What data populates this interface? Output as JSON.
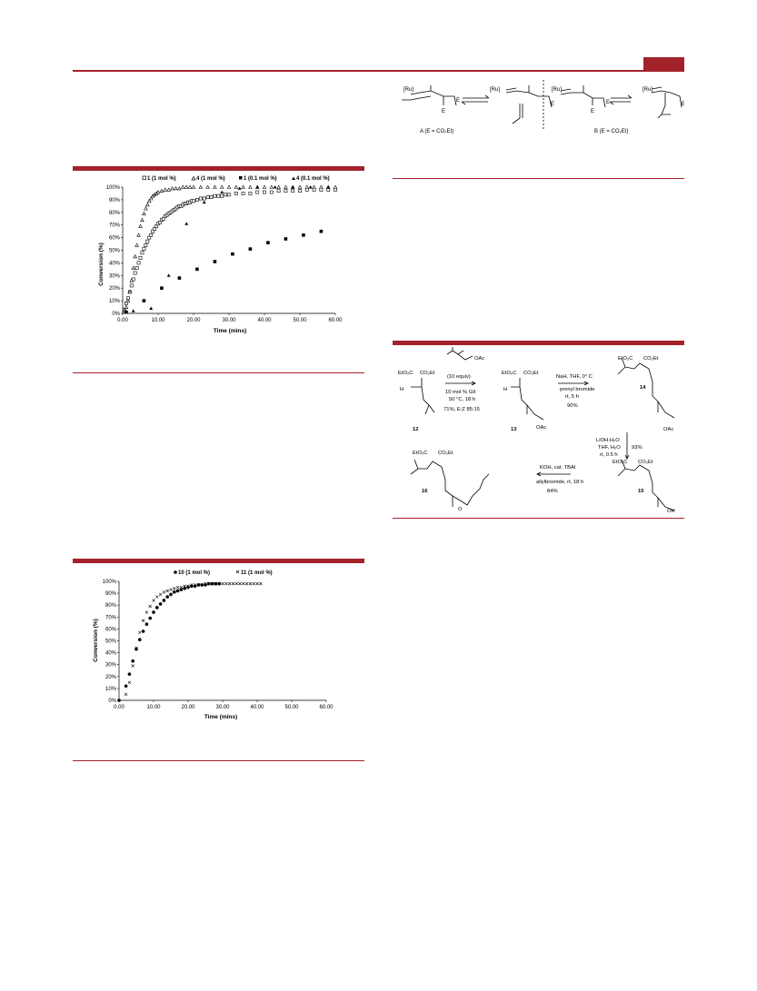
{
  "header": {
    "accent": "#a3222a"
  },
  "figure1": {
    "legend": [
      "1 (1 mol %)",
      "4 (1 mol %)",
      "1 (0.1 mol %)",
      "4 (0.1 mol %)"
    ],
    "ylabel": "Conversion (%)",
    "xlabel": "Time (mins)"
  },
  "figure2": {
    "legend": [
      "10 (1 mol %)",
      "11 (1 mol %)"
    ],
    "ylabel": "Conversion (%)",
    "xlabel": "Time (mins)"
  },
  "scheme_top": {
    "ru": "[Ru]",
    "e": "E",
    "label_a": "A (E = CO₂Et)",
    "label_b": "B (E = CO₂Et)"
  },
  "scheme_synth": {
    "eto2c": "EtO₂C",
    "co2et": "CO₂Et",
    "h": "H",
    "oac": "OAc",
    "oh": "OH",
    "o": "O",
    "c12": "12",
    "c13": "13",
    "c14": "14",
    "c15": "15",
    "c16": "16",
    "step1_equiv": "(10 equiv)",
    "step1_cat": "10 mol % GII",
    "step1_cond": "50 °C, 18 h",
    "step1_yield": "71%, E:Z 85:15",
    "step2_a": "NaH, THF, 0° C",
    "step2_b": "prenyl bromide",
    "step2_c": "rt, 5 h",
    "step2_yield": "90%",
    "step3_a": "LiOH.H₂O",
    "step3_b": "THF, H₂O",
    "step3_c": "rt, 0.5 h",
    "step3_yield": "93%",
    "step4_a": "KOH, cat. TBAI",
    "step4_b": "allylbromide, rt, 18 h",
    "step4_yield": "84%"
  },
  "chart_data": [
    {
      "type": "scatter",
      "title": "",
      "xlabel": "Time (mins)",
      "ylabel": "Conversion (%)",
      "xlim": [
        0,
        60
      ],
      "ylim": [
        0,
        100
      ],
      "xticks": [
        "0.00",
        "10.00",
        "20.00",
        "30.00",
        "40.00",
        "50.00",
        "60.00"
      ],
      "yticks": [
        "0%",
        "10%",
        "20%",
        "30%",
        "40%",
        "50%",
        "60%",
        "70%",
        "80%",
        "90%",
        "100%"
      ],
      "legend_position": "top",
      "series": [
        {
          "name": "1 (1 mol %)",
          "marker": "open-square",
          "x": [
            0.5,
            1,
            1.5,
            2,
            2.5,
            3,
            3.5,
            4,
            4.5,
            5,
            5.5,
            6,
            6.5,
            7,
            7.5,
            8,
            8.5,
            9,
            9.5,
            10,
            10.5,
            11,
            11.5,
            12,
            12.5,
            13,
            13.5,
            14,
            14.5,
            15,
            15.5,
            16,
            16.5,
            17,
            17.5,
            18,
            18.5,
            19,
            19.5,
            20,
            21,
            22,
            23,
            24,
            25,
            26,
            27,
            28,
            29,
            30,
            32,
            34,
            36,
            38,
            40,
            42,
            44,
            46,
            48,
            50,
            52,
            54,
            56,
            58,
            60
          ],
          "y": [
            3,
            8,
            12,
            17,
            22,
            27,
            32,
            36,
            40,
            44,
            48,
            51,
            54,
            57,
            60,
            62,
            65,
            67,
            69,
            71,
            72,
            74,
            75,
            77,
            78,
            79,
            80,
            81,
            82,
            83,
            84,
            85,
            85,
            86,
            87,
            87,
            88,
            88,
            89,
            89,
            90,
            91,
            91,
            92,
            92,
            93,
            93,
            93,
            94,
            94,
            95,
            95,
            95,
            96,
            96,
            96,
            97,
            97,
            97,
            97,
            98,
            98,
            98,
            98,
            98
          ]
        },
        {
          "name": "4 (1 mol %)",
          "marker": "open-triangle",
          "x": [
            0.5,
            1,
            1.5,
            2,
            2.5,
            3,
            3.5,
            4,
            4.5,
            5,
            5.5,
            6,
            6.5,
            7,
            7.5,
            8,
            8.5,
            9,
            9.5,
            10,
            11,
            12,
            13,
            14,
            15,
            16,
            17,
            18,
            19,
            20,
            22,
            24,
            26,
            28,
            30,
            32,
            34,
            36,
            38,
            40,
            42,
            44,
            46,
            48,
            50,
            52,
            54,
            56,
            58,
            60
          ],
          "y": [
            2,
            5,
            10,
            17,
            26,
            36,
            45,
            54,
            62,
            69,
            74,
            79,
            83,
            86,
            89,
            91,
            93,
            94,
            95,
            96,
            97,
            98,
            98,
            99,
            99,
            99,
            100,
            100,
            100,
            100,
            100,
            100,
            100,
            100,
            100,
            100,
            100,
            100,
            100,
            100,
            100,
            100,
            100,
            100,
            100,
            100,
            100,
            100,
            100,
            100
          ]
        },
        {
          "name": "1 (0.1 mol %)",
          "marker": "filled-square",
          "x": [
            1,
            6,
            11,
            16,
            21,
            26,
            31,
            36,
            41,
            46,
            51,
            56
          ],
          "y": [
            1,
            10,
            20,
            28,
            35,
            41,
            47,
            51,
            56,
            59,
            62,
            65
          ]
        },
        {
          "name": "4 (0.1 mol %)",
          "marker": "filled-triangle",
          "x": [
            1,
            3,
            8,
            13,
            18,
            23,
            28,
            33,
            38,
            43,
            48,
            53,
            58
          ],
          "y": [
            1,
            2,
            4,
            30,
            71,
            88,
            96,
            99,
            100,
            100,
            100,
            100,
            100
          ]
        }
      ]
    },
    {
      "type": "scatter",
      "title": "",
      "xlabel": "Time (mins)",
      "ylabel": "Conversion (%)",
      "xlim": [
        0,
        60
      ],
      "ylim": [
        0,
        100
      ],
      "xticks": [
        "0.00",
        "10.00",
        "20.00",
        "30.00",
        "40.00",
        "50.00",
        "60.00"
      ],
      "yticks": [
        "0%",
        "10%",
        "20%",
        "30%",
        "40%",
        "50%",
        "60%",
        "70%",
        "80%",
        "90%",
        "100%"
      ],
      "legend_position": "top",
      "series": [
        {
          "name": "10 (1 mol %)",
          "marker": "filled-circle",
          "x": [
            0,
            2,
            3,
            4,
            5,
            6,
            7,
            8,
            9,
            10,
            11,
            12,
            13,
            14,
            15,
            16,
            17,
            18,
            19,
            20,
            21,
            22,
            23,
            24,
            25,
            26,
            27,
            28,
            29
          ],
          "y": [
            0,
            12,
            22,
            33,
            43,
            51,
            58,
            64,
            69,
            74,
            78,
            81,
            84,
            87,
            89,
            91,
            92,
            93,
            94,
            95,
            96,
            96,
            97,
            97,
            97,
            98,
            98,
            98,
            98
          ]
        },
        {
          "name": "11 (1 mol %)",
          "marker": "cross",
          "x": [
            2,
            3,
            4,
            5,
            6,
            7,
            8,
            9,
            10,
            11,
            12,
            13,
            14,
            15,
            16,
            17,
            18,
            19,
            20,
            21,
            22,
            23,
            24,
            25,
            26,
            27,
            28,
            29,
            30,
            31,
            32,
            33,
            34,
            35,
            36,
            37,
            38,
            39,
            40,
            41
          ],
          "y": [
            5,
            15,
            29,
            44,
            57,
            67,
            74,
            79,
            84,
            87,
            89,
            91,
            92,
            93,
            94,
            95,
            95,
            96,
            96,
            97,
            97,
            97,
            97,
            98,
            98,
            98,
            98,
            98,
            98,
            98,
            98,
            98,
            98,
            98,
            98,
            98,
            98,
            98,
            98,
            98
          ]
        }
      ]
    }
  ]
}
